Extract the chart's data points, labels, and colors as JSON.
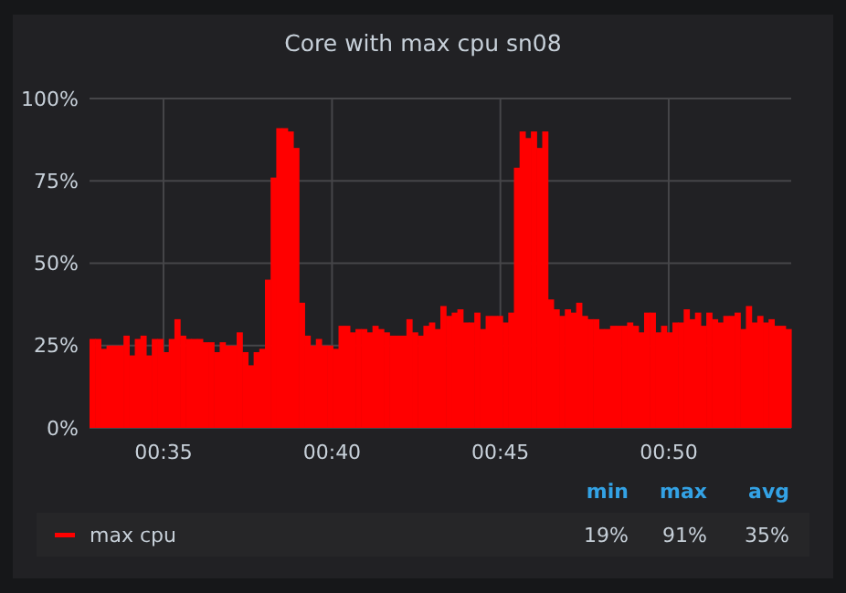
{
  "chart_data": {
    "type": "bar",
    "title": "Core with max cpu sn08",
    "x": [
      0.5467,
      0.5495,
      0.5523,
      0.5551,
      0.5579,
      0.5607,
      0.5635,
      0.5663,
      0.5691,
      0.5719,
      0.5747,
      0.5775,
      0.5803,
      0.5831,
      0.5859,
      0.5887,
      0.5915,
      0.5943,
      0.5971,
      0.5999,
      0.6027,
      0.6055,
      0.6083,
      0.6111,
      0.6139,
      0.6167,
      0.6195,
      0.6223,
      0.6251,
      0.6279,
      0.6307,
      0.6335,
      0.6363,
      0.6391,
      0.6419,
      0.6447,
      0.6475,
      0.6503,
      0.6531,
      0.6559,
      0.6587,
      0.6615,
      0.6643,
      0.6671,
      0.6699,
      0.6727,
      0.6755,
      0.6783,
      0.6811,
      0.6839,
      0.6867,
      0.6895,
      0.6923,
      0.6951,
      0.6979,
      0.7007,
      0.7035,
      0.7063,
      0.7091,
      0.7119,
      0.7147,
      0.7175,
      0.7203,
      0.7231,
      0.7259,
      0.7287,
      0.7315,
      0.7343,
      0.7371,
      0.7399,
      0.7427,
      0.7455,
      0.7483,
      0.7511,
      0.7539,
      0.7567,
      0.7595,
      0.7623,
      0.7651,
      0.7679,
      0.7707,
      0.7735,
      0.7763,
      0.7791,
      0.7819,
      0.7847,
      0.7875,
      0.7903,
      0.7931,
      0.7959,
      0.7987,
      0.8015,
      0.8043,
      0.8071,
      0.8099,
      0.8127,
      0.8155,
      0.8183,
      0.8211,
      0.8239,
      0.8267,
      0.8295,
      0.8323,
      0.8351,
      0.8379,
      0.8407,
      0.8435,
      0.8463,
      0.8491,
      0.8519,
      0.8547,
      0.8575,
      0.8603,
      0.8631,
      0.8659,
      0.8687,
      0.8715,
      0.8743,
      0.8771,
      0.8799,
      0.8827,
      0.8855,
      0.8883,
      0.8911
    ],
    "series": [
      {
        "name": "max cpu",
        "color": "#ff0000",
        "values": [
          27,
          27,
          24,
          25,
          25,
          25,
          28,
          22,
          27,
          28,
          22,
          27,
          27,
          23,
          27,
          33,
          28,
          27,
          27,
          27,
          26,
          26,
          23,
          26,
          25,
          25,
          29,
          23,
          19,
          23,
          24,
          45,
          76,
          91,
          91,
          90,
          85,
          38,
          28,
          25,
          27,
          25,
          25,
          24,
          31,
          31,
          29,
          30,
          30,
          29,
          31,
          30,
          29,
          28,
          28,
          28,
          33,
          29,
          28,
          31,
          32,
          30,
          37,
          34,
          35,
          36,
          32,
          32,
          35,
          30,
          34,
          34,
          34,
          32,
          35,
          79,
          90,
          88,
          90,
          85,
          90,
          39,
          36,
          34,
          36,
          35,
          38,
          34,
          33,
          33,
          30,
          30,
          31,
          31,
          31,
          32,
          31,
          29,
          35,
          35,
          29,
          31,
          29,
          32,
          32,
          36,
          33,
          35,
          31,
          35,
          33,
          32,
          34,
          34,
          35,
          30,
          37,
          32,
          34,
          32,
          33,
          31,
          31,
          30
        ]
      }
    ],
    "xlim": [
      0.5467,
      0.8939
    ],
    "xticks": [
      {
        "value": 0.5833,
        "label": "00:35"
      },
      {
        "value": 0.6667,
        "label": "00:40"
      },
      {
        "value": 0.75,
        "label": "00:45"
      },
      {
        "value": 0.8333,
        "label": "00:50"
      }
    ],
    "ylim": [
      0,
      100
    ],
    "yticks": [
      {
        "value": 0,
        "label": "0%"
      },
      {
        "value": 25,
        "label": "25%"
      },
      {
        "value": 50,
        "label": "50%"
      },
      {
        "value": 75,
        "label": "75%"
      },
      {
        "value": 100,
        "label": "100%"
      }
    ],
    "grid": true,
    "legend": "bottom",
    "annotations": [
      "min",
      "max",
      "avg",
      "19%",
      "91%",
      "35%"
    ]
  }
}
